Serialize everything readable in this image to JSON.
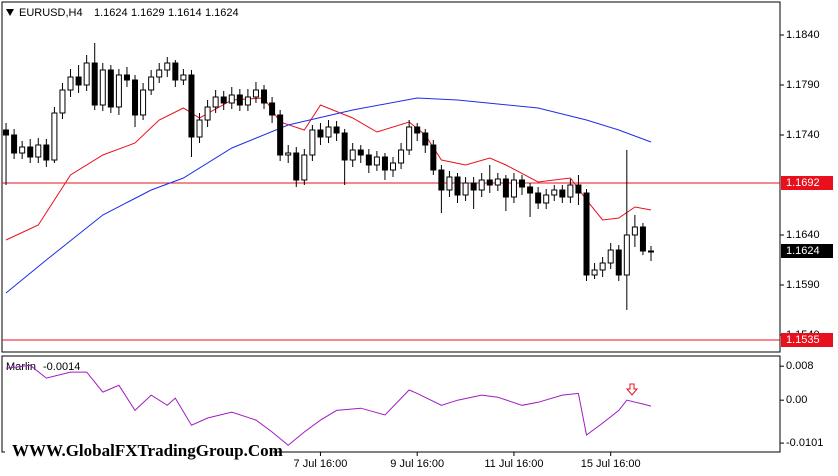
{
  "chart_data": [
    {
      "type": "candlestick",
      "symbol": "EURUSD,H4",
      "up_color": "#ffffff",
      "down_color": "#000000",
      "open": [
        1.1745,
        1.174,
        1.1722,
        1.1728,
        1.1718,
        1.173,
        1.1715,
        1.1762,
        1.1785,
        1.1798,
        1.179,
        1.1812,
        1.177,
        1.1805,
        1.1768,
        1.18,
        1.1795,
        1.176,
        1.1785,
        1.1798,
        1.1805,
        1.1812,
        1.1795,
        1.18,
        1.1738,
        1.1755,
        1.1768,
        1.1778,
        1.1772,
        1.178,
        1.177,
        1.1778,
        1.1785,
        1.1772,
        1.176,
        1.172,
        1.1722,
        1.1695,
        1.172,
        1.1745,
        1.1738,
        1.1748,
        1.1742,
        1.1715,
        1.1725,
        1.172,
        1.171,
        1.1718,
        1.1705,
        1.1712,
        1.1725,
        1.1748,
        1.1742,
        1.173,
        1.1705,
        1.1685,
        1.1698,
        1.168,
        1.1692,
        1.1685,
        1.1695,
        1.169,
        1.1696,
        1.1678,
        1.1695,
        1.1688,
        1.1682,
        1.1672,
        1.168,
        1.1685,
        1.1678,
        1.169,
        1.1682,
        1.16,
        1.1605,
        1.1612,
        1.1625,
        1.16,
        1.164,
        1.1648,
        1.1624
      ],
      "high": [
        1.1752,
        1.1746,
        1.1734,
        1.1736,
        1.1737,
        1.1736,
        1.1768,
        1.1792,
        1.1806,
        1.181,
        1.182,
        1.1832,
        1.1812,
        1.181,
        1.1806,
        1.1808,
        1.18,
        1.1792,
        1.1805,
        1.1812,
        1.1818,
        1.1815,
        1.1806,
        1.1805,
        1.1762,
        1.1775,
        1.1785,
        1.1784,
        1.1788,
        1.1786,
        1.1786,
        1.1793,
        1.179,
        1.1778,
        1.1765,
        1.173,
        1.1728,
        1.1726,
        1.175,
        1.1752,
        1.1755,
        1.1754,
        1.1746,
        1.1732,
        1.173,
        1.1726,
        1.1724,
        1.1722,
        1.1718,
        1.1732,
        1.1755,
        1.1752,
        1.1746,
        1.1735,
        1.171,
        1.1704,
        1.1702,
        1.1698,
        1.1698,
        1.1702,
        1.171,
        1.1702,
        1.17,
        1.1702,
        1.17,
        1.1692,
        1.1688,
        1.1686,
        1.169,
        1.169,
        1.1696,
        1.17,
        1.1686,
        1.1612,
        1.1618,
        1.1632,
        1.163,
        1.1725,
        1.166,
        1.1652,
        1.1629
      ],
      "low": [
        1.169,
        1.1716,
        1.1716,
        1.1712,
        1.1712,
        1.1708,
        1.1712,
        1.1756,
        1.1778,
        1.1782,
        1.1784,
        1.1765,
        1.1764,
        1.1762,
        1.176,
        1.1788,
        1.1748,
        1.1755,
        1.178,
        1.1792,
        1.1798,
        1.1788,
        1.179,
        1.1718,
        1.1732,
        1.1748,
        1.1762,
        1.1765,
        1.1766,
        1.1764,
        1.1764,
        1.1772,
        1.1766,
        1.1752,
        1.1714,
        1.1712,
        1.1688,
        1.169,
        1.1714,
        1.173,
        1.1732,
        1.1734,
        1.169,
        1.1708,
        1.1712,
        1.1702,
        1.1704,
        1.1695,
        1.1698,
        1.1706,
        1.172,
        1.1734,
        1.1722,
        1.17,
        1.1662,
        1.1678,
        1.1672,
        1.1674,
        1.1666,
        1.1678,
        1.1682,
        1.1684,
        1.1664,
        1.1672,
        1.168,
        1.1658,
        1.1666,
        1.1666,
        1.1674,
        1.1672,
        1.1672,
        1.167,
        1.1594,
        1.1596,
        1.1598,
        1.1606,
        1.1594,
        1.1565,
        1.1628,
        1.162,
        1.1614
      ],
      "close": [
        1.174,
        1.1722,
        1.1728,
        1.1718,
        1.173,
        1.1715,
        1.1762,
        1.1785,
        1.1798,
        1.179,
        1.1812,
        1.177,
        1.1805,
        1.1768,
        1.18,
        1.1795,
        1.176,
        1.1785,
        1.1798,
        1.1805,
        1.1812,
        1.1795,
        1.18,
        1.1738,
        1.1755,
        1.1768,
        1.1778,
        1.1772,
        1.178,
        1.177,
        1.1778,
        1.1785,
        1.1772,
        1.176,
        1.172,
        1.1722,
        1.1695,
        1.172,
        1.1745,
        1.1738,
        1.1748,
        1.1742,
        1.1715,
        1.1725,
        1.172,
        1.171,
        1.1718,
        1.1705,
        1.1712,
        1.1725,
        1.1748,
        1.1742,
        1.173,
        1.1705,
        1.1685,
        1.1698,
        1.168,
        1.1692,
        1.1685,
        1.1695,
        1.169,
        1.1696,
        1.1678,
        1.1695,
        1.1688,
        1.1682,
        1.1672,
        1.168,
        1.1685,
        1.1678,
        1.169,
        1.1682,
        1.16,
        1.1605,
        1.1612,
        1.1625,
        1.16,
        1.164,
        1.1648,
        1.1624,
        1.1624
      ],
      "lines": [
        {
          "color": "#e8101c",
          "x": [
            0,
            4,
            8,
            12,
            16,
            19,
            22,
            24,
            28,
            32,
            34,
            37,
            39,
            43,
            46,
            50,
            52,
            54,
            57,
            60,
            62,
            66,
            70,
            72,
            74,
            76,
            78,
            80
          ],
          "values": [
            1.1635,
            1.165,
            1.17,
            1.172,
            1.1732,
            1.1755,
            1.1767,
            1.1757,
            1.1775,
            1.1777,
            1.1753,
            1.1745,
            1.177,
            1.1757,
            1.1743,
            1.1753,
            1.174,
            1.1715,
            1.171,
            1.1717,
            1.171,
            1.1693,
            1.1697,
            1.1675,
            1.1655,
            1.1657,
            1.1668,
            1.1665
          ]
        },
        {
          "color": "#1c2ee8",
          "x": [
            0,
            5,
            12,
            18,
            22,
            28,
            35,
            43,
            51,
            56,
            66,
            72,
            76,
            80
          ],
          "values": [
            1.1582,
            1.1615,
            1.166,
            1.1685,
            1.1697,
            1.1727,
            1.175,
            1.1765,
            1.1777,
            1.1775,
            1.1767,
            1.1755,
            1.1745,
            1.1733
          ]
        }
      ],
      "levels": [
        {
          "value": 1.1692,
          "color": "#e8101c"
        },
        {
          "value": 1.1535,
          "color": "#e8101c"
        }
      ],
      "ylim": [
        1.1523,
        1.1873
      ],
      "yticks": [
        {
          "value": 1.184,
          "label": "1.1840"
        },
        {
          "value": 1.179,
          "label": "1.1790"
        },
        {
          "value": 1.174,
          "label": "1.1740"
        },
        {
          "value": 1.164,
          "label": "1.1640"
        },
        {
          "value": 1.159,
          "label": "1.1590"
        },
        {
          "value": 1.154,
          "label": "1.1540"
        }
      ],
      "xlim": [
        -0.5,
        96
      ],
      "xticks": [
        {
          "value": 39,
          "label": "7 Jul 16:00"
        },
        {
          "value": 51,
          "label": "9 Jul 16:00"
        },
        {
          "value": 63,
          "label": "11 Jul 16:00"
        },
        {
          "value": 75,
          "label": "15 Jul 16:00"
        }
      ]
    },
    {
      "type": "line",
      "name": "Marlin",
      "series": [
        {
          "color": "#a01cc0",
          "x": [
            0,
            3,
            5,
            8,
            10,
            12,
            14,
            16,
            18,
            20,
            21,
            23,
            25,
            28,
            31,
            33,
            35,
            37,
            39,
            41,
            44,
            47,
            50,
            51,
            54,
            56,
            59,
            61,
            64,
            66,
            69,
            71,
            72,
            74,
            76,
            77,
            79,
            80
          ],
          "values": [
            0.0075,
            0.0082,
            0.0052,
            0.0066,
            0.0066,
            0.0019,
            0.0035,
            -0.0024,
            0.0012,
            -0.0012,
            0.0005,
            -0.0059,
            -0.0042,
            -0.0028,
            -0.0047,
            -0.0075,
            -0.0106,
            -0.0075,
            -0.0047,
            -0.0024,
            -0.0019,
            -0.0035,
            0.0024,
            0.0016,
            -0.0012,
            0,
            0.0012,
            0.0007,
            -0.0012,
            -0.0005,
            0.0012,
            0.0016,
            -0.0082,
            -0.0054,
            -0.0024,
            0,
            -0.0009,
            -0.0014
          ]
        }
      ],
      "ylim": [
        -0.0122,
        0.0104
      ],
      "yticks": [
        0.008,
        {
          "value": 0,
          "label": "0.00"
        },
        -0.0101
      ]
    }
  ],
  "watermark": "WWW.GlobalFXTradingGroup.Com"
}
